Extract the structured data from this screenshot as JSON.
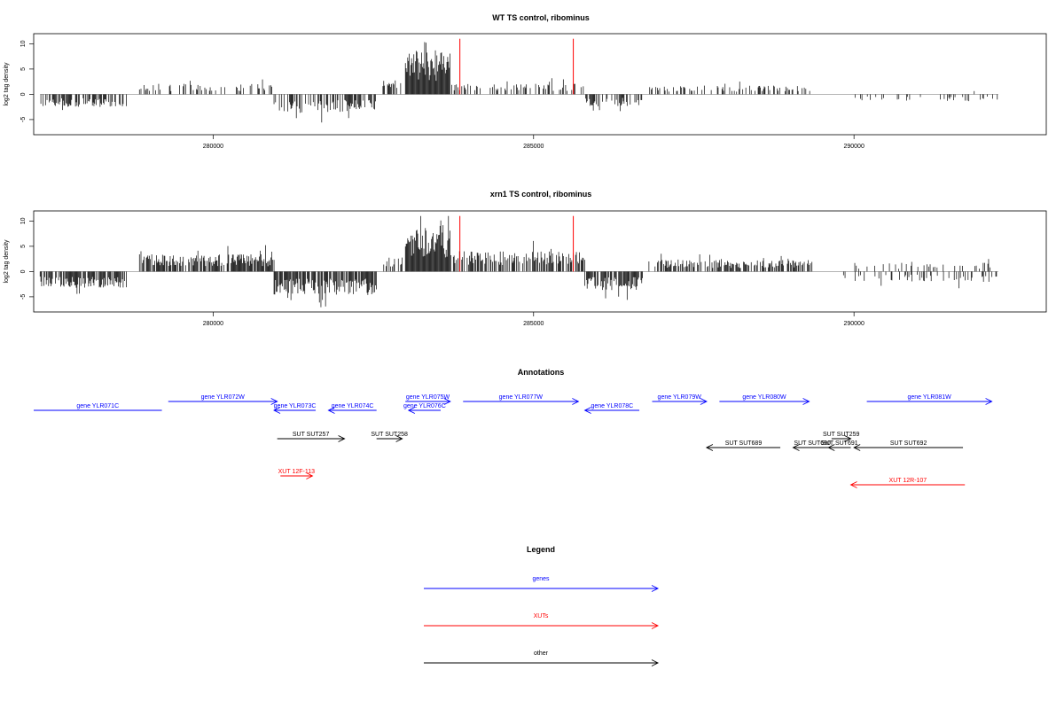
{
  "chart_data": [
    {
      "type": "bar",
      "title": "WT TS control, ribominus",
      "xlabel": "",
      "ylabel": "log2 tag density",
      "xlim": [
        277200,
        293000
      ],
      "ylim": [
        -8,
        12
      ],
      "x_ticks": [
        280000,
        285000,
        290000
      ],
      "y_ticks": [
        -5,
        0,
        5,
        10
      ],
      "y_tick_labels": [
        "-5",
        "0",
        "5",
        "10"
      ],
      "grid": false,
      "marker_lines": {
        "color": "#ff0000",
        "x": [
          283850,
          285620
        ],
        "ymax": 11
      },
      "segments": [
        {
          "start": 277300,
          "end": 278650,
          "sign": -1,
          "amp": 2.2,
          "density": 0.55
        },
        {
          "start": 278850,
          "end": 280950,
          "sign": 1,
          "amp": 1.8,
          "density": 0.35
        },
        {
          "start": 280950,
          "end": 282550,
          "sign": -1,
          "amp": 3.2,
          "density": 0.6
        },
        {
          "start": 282650,
          "end": 282950,
          "sign": 1,
          "amp": 2.5,
          "density": 0.4
        },
        {
          "start": 283000,
          "end": 283700,
          "sign": 1,
          "amp": 7.5,
          "density": 1.0
        },
        {
          "start": 283700,
          "end": 285800,
          "sign": 1,
          "amp": 1.8,
          "density": 0.3
        },
        {
          "start": 285800,
          "end": 286700,
          "sign": -1,
          "amp": 2.0,
          "density": 0.5
        },
        {
          "start": 286800,
          "end": 289350,
          "sign": 1,
          "amp": 1.5,
          "density": 0.3
        },
        {
          "start": 289800,
          "end": 292250,
          "sign": -1,
          "amp": 1.2,
          "density": 0.12
        },
        {
          "start": 291600,
          "end": 292000,
          "sign": 1,
          "amp": 1.2,
          "density": 0.05
        }
      ]
    },
    {
      "type": "bar",
      "title": "xrn1 TS control, ribominus",
      "xlabel": "",
      "ylabel": "log2 tag density",
      "xlim": [
        277200,
        293000
      ],
      "ylim": [
        -8,
        12
      ],
      "x_ticks": [
        280000,
        285000,
        290000
      ],
      "y_ticks": [
        -5,
        0,
        5,
        10
      ],
      "y_tick_labels": [
        "-5",
        "0",
        "5",
        "10"
      ],
      "grid": false,
      "marker_lines": {
        "color": "#ff0000",
        "x": [
          283850,
          285620
        ],
        "ymax": 11
      },
      "segments": [
        {
          "start": 277300,
          "end": 278650,
          "sign": -1,
          "amp": 2.8,
          "density": 0.8
        },
        {
          "start": 278850,
          "end": 280950,
          "sign": 1,
          "amp": 3.0,
          "density": 0.8
        },
        {
          "start": 280950,
          "end": 282550,
          "sign": -1,
          "amp": 4.0,
          "density": 0.8
        },
        {
          "start": 282650,
          "end": 282950,
          "sign": 1,
          "amp": 2.5,
          "density": 0.5
        },
        {
          "start": 283000,
          "end": 283700,
          "sign": 1,
          "amp": 8.0,
          "density": 1.0
        },
        {
          "start": 283700,
          "end": 285800,
          "sign": 1,
          "amp": 3.5,
          "density": 0.6
        },
        {
          "start": 285800,
          "end": 286700,
          "sign": -1,
          "amp": 3.2,
          "density": 0.8
        },
        {
          "start": 286800,
          "end": 289350,
          "sign": 1,
          "amp": 2.0,
          "density": 0.6
        },
        {
          "start": 289800,
          "end": 292250,
          "sign": -1,
          "amp": 1.8,
          "density": 0.2
        },
        {
          "start": 290000,
          "end": 292250,
          "sign": 1,
          "amp": 1.5,
          "density": 0.15
        }
      ]
    }
  ],
  "annotations": {
    "title": "Annotations",
    "colors": {
      "genes": "#0000ff",
      "XUTs": "#ff0000",
      "other": "#000000"
    },
    "items": [
      {
        "label": "gene YLR071C",
        "start": 277200,
        "end": 279200,
        "dir": "none",
        "row": "genes",
        "kind": "genes"
      },
      {
        "label": "gene YLR072W",
        "start": 279300,
        "end": 281000,
        "dir": "right",
        "row": "genes_hi",
        "kind": "genes"
      },
      {
        "label": "gene YLR073C",
        "start": 280950,
        "end": 281600,
        "dir": "left",
        "row": "genes",
        "kind": "genes"
      },
      {
        "label": "gene YLR074C",
        "start": 281800,
        "end": 282550,
        "dir": "left",
        "row": "genes",
        "kind": "genes"
      },
      {
        "label": "gene YLR075W",
        "start": 283000,
        "end": 283700,
        "dir": "right",
        "row": "genes_hi",
        "kind": "genes"
      },
      {
        "label": "gene YLR076C",
        "start": 283050,
        "end": 283550,
        "dir": "left",
        "row": "genes",
        "kind": "genes"
      },
      {
        "label": "gene YLR077W",
        "start": 283900,
        "end": 285700,
        "dir": "right",
        "row": "genes_hi",
        "kind": "genes"
      },
      {
        "label": "gene YLR078C",
        "start": 285800,
        "end": 286650,
        "dir": "left",
        "row": "genes",
        "kind": "genes"
      },
      {
        "label": "gene YLR079W",
        "start": 286850,
        "end": 287700,
        "dir": "right",
        "row": "genes_hi",
        "kind": "genes"
      },
      {
        "label": "gene YLR080W",
        "start": 287900,
        "end": 289300,
        "dir": "right",
        "row": "genes_hi",
        "kind": "genes"
      },
      {
        "label": "gene YLR081W",
        "start": 290200,
        "end": 292150,
        "dir": "right",
        "row": "genes_hi",
        "kind": "genes"
      },
      {
        "label": "SUT SUT257",
        "start": 281000,
        "end": 282050,
        "dir": "right",
        "row": "other1",
        "kind": "other"
      },
      {
        "label": "SUT SUT258",
        "start": 282550,
        "end": 282950,
        "dir": "right",
        "row": "other1",
        "kind": "other"
      },
      {
        "label": "SUT SUT689",
        "start": 287700,
        "end": 288850,
        "dir": "left",
        "row": "other2",
        "kind": "other"
      },
      {
        "label": "SUT SUT690",
        "start": 289050,
        "end": 289650,
        "dir": "left",
        "row": "other2",
        "kind": "other"
      },
      {
        "label": "SUT SUT259",
        "start": 289650,
        "end": 289950,
        "dir": "right",
        "row": "other1",
        "kind": "other"
      },
      {
        "label": "SUT SUT691",
        "start": 289600,
        "end": 289950,
        "dir": "left",
        "row": "other2",
        "kind": "other"
      },
      {
        "label": "SUT SUT692",
        "start": 290000,
        "end": 291700,
        "dir": "left",
        "row": "other2",
        "kind": "other"
      },
      {
        "label": "XUT 12F-113",
        "start": 281050,
        "end": 281550,
        "dir": "right",
        "row": "xut",
        "kind": "XUTs"
      },
      {
        "label": "XUT 12R-107",
        "start": 289950,
        "end": 291730,
        "dir": "left",
        "row": "xut2",
        "kind": "XUTs"
      }
    ]
  },
  "legend": {
    "title": "Legend",
    "items": [
      {
        "label": "genes",
        "color": "#0000ff"
      },
      {
        "label": "XUTs",
        "color": "#ff0000"
      },
      {
        "label": "other",
        "color": "#000000"
      }
    ]
  }
}
